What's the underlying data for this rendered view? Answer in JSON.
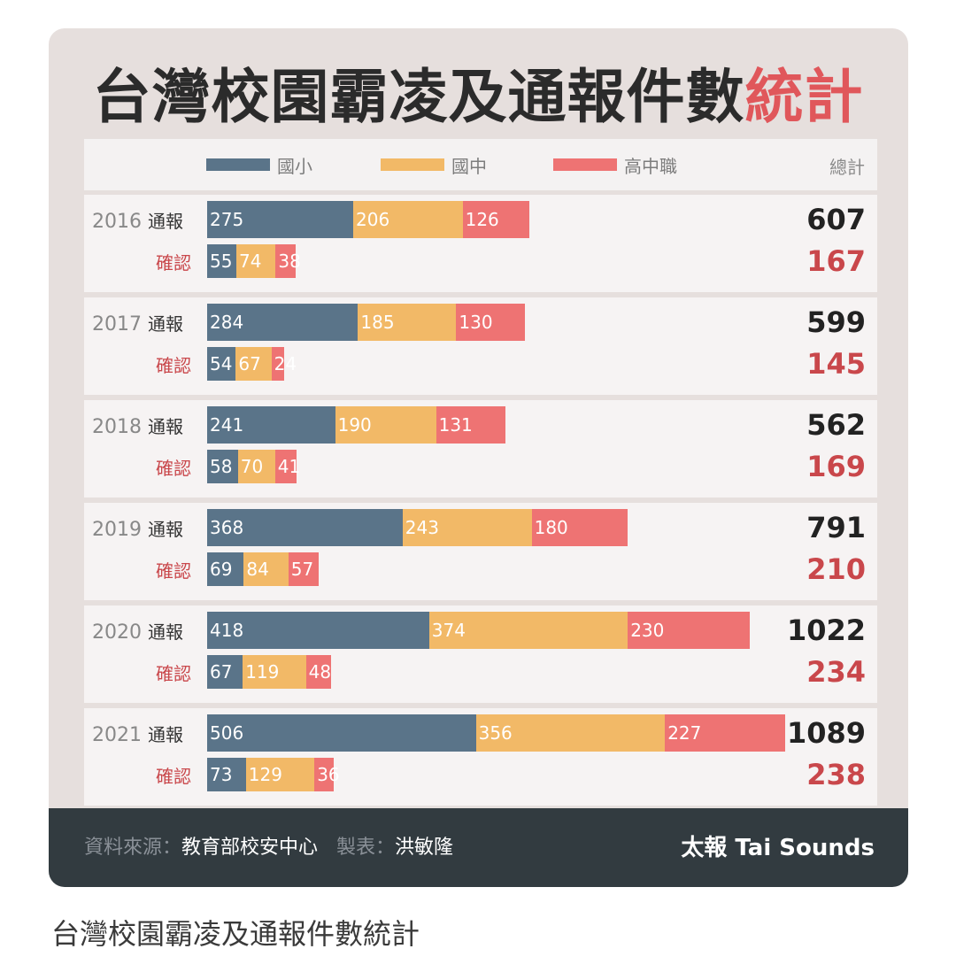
{
  "chart_data": {
    "type": "bar",
    "stacked": true,
    "orientation": "horizontal",
    "title_main": "台灣校園霸凌及通報件數",
    "title_accent": "統計",
    "categories": [
      "2016",
      "2017",
      "2018",
      "2019",
      "2020",
      "2021"
    ],
    "row_kinds": [
      "通報",
      "確認"
    ],
    "legend": [
      {
        "name": "國小",
        "color": "#5a7489"
      },
      {
        "name": "國中",
        "color": "#f2b967"
      },
      {
        "name": "高中職",
        "color": "#ee7373"
      }
    ],
    "total_header": "總計",
    "rows": [
      {
        "year": "2016",
        "report": [
          275,
          206,
          126
        ],
        "report_total": 607,
        "confirm": [
          55,
          74,
          38
        ],
        "confirm_total": 167
      },
      {
        "year": "2017",
        "report": [
          284,
          185,
          130
        ],
        "report_total": 599,
        "confirm": [
          54,
          67,
          24
        ],
        "confirm_total": 145
      },
      {
        "year": "2018",
        "report": [
          241,
          190,
          131
        ],
        "report_total": 562,
        "confirm": [
          58,
          70,
          41
        ],
        "confirm_total": 169
      },
      {
        "year": "2019",
        "report": [
          368,
          243,
          180
        ],
        "report_total": 791,
        "confirm": [
          69,
          84,
          57
        ],
        "confirm_total": 210
      },
      {
        "year": "2020",
        "report": [
          418,
          374,
          230
        ],
        "report_total": 1022,
        "confirm": [
          67,
          119,
          48
        ],
        "confirm_total": 234
      },
      {
        "year": "2021",
        "report": [
          506,
          356,
          227
        ],
        "report_total": 1089,
        "confirm": [
          73,
          129,
          36
        ],
        "confirm_total": 238
      }
    ]
  },
  "footer": {
    "source_label": "資料來源：",
    "source_value": "教育部校安中心",
    "maker_label": "製表：",
    "maker_value": "洪敏隆",
    "brand": "太報 Tai Sounds"
  },
  "caption": "台灣校園霸凌及通報件數統計"
}
